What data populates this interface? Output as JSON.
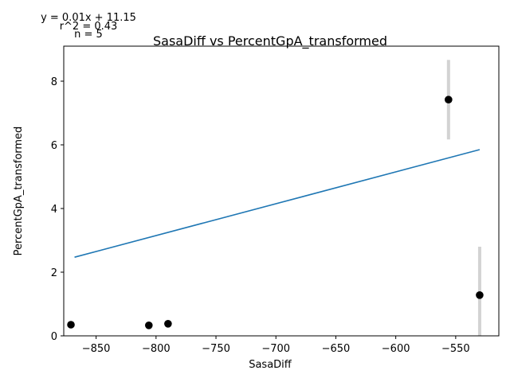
{
  "chart_data": {
    "type": "scatter",
    "title": "SasaDiff vs PercentGpA_transformed",
    "xlabel": "SasaDiff",
    "ylabel": "PercentGpA_transformed",
    "xlim": [
      -877,
      -514
    ],
    "ylim": [
      0,
      9.1
    ],
    "x_ticks": [
      -850,
      -800,
      -750,
      -700,
      -650,
      -600,
      -550
    ],
    "x_tick_labels": [
      "−850",
      "−800",
      "−750",
      "−700",
      "−650",
      "−600",
      "−550"
    ],
    "y_ticks": [
      0,
      2,
      4,
      6,
      8
    ],
    "y_tick_labels": [
      "0",
      "2",
      "4",
      "6",
      "8"
    ],
    "grid": false,
    "legend": "none",
    "points": [
      {
        "x": -871,
        "y": 0.35,
        "err": 0
      },
      {
        "x": -806,
        "y": 0.33,
        "err": 0
      },
      {
        "x": -790,
        "y": 0.38,
        "err": 0.06
      },
      {
        "x": -556,
        "y": 7.42,
        "err": 1.25
      },
      {
        "x": -530,
        "y": 1.28,
        "err": 1.52
      }
    ],
    "fit": {
      "x_start": -868,
      "x_end": -530,
      "slope": 0.01,
      "intercept": 11.15
    },
    "annotations": {
      "equation": "y = 0.01x + 11.15",
      "r2": "r^2 = 0.43",
      "n": "n = 5"
    },
    "colors": {
      "points": "#000000",
      "error_bars": "#d3d3d3",
      "fit_line": "#1f77b4",
      "axes": "#000000"
    }
  }
}
